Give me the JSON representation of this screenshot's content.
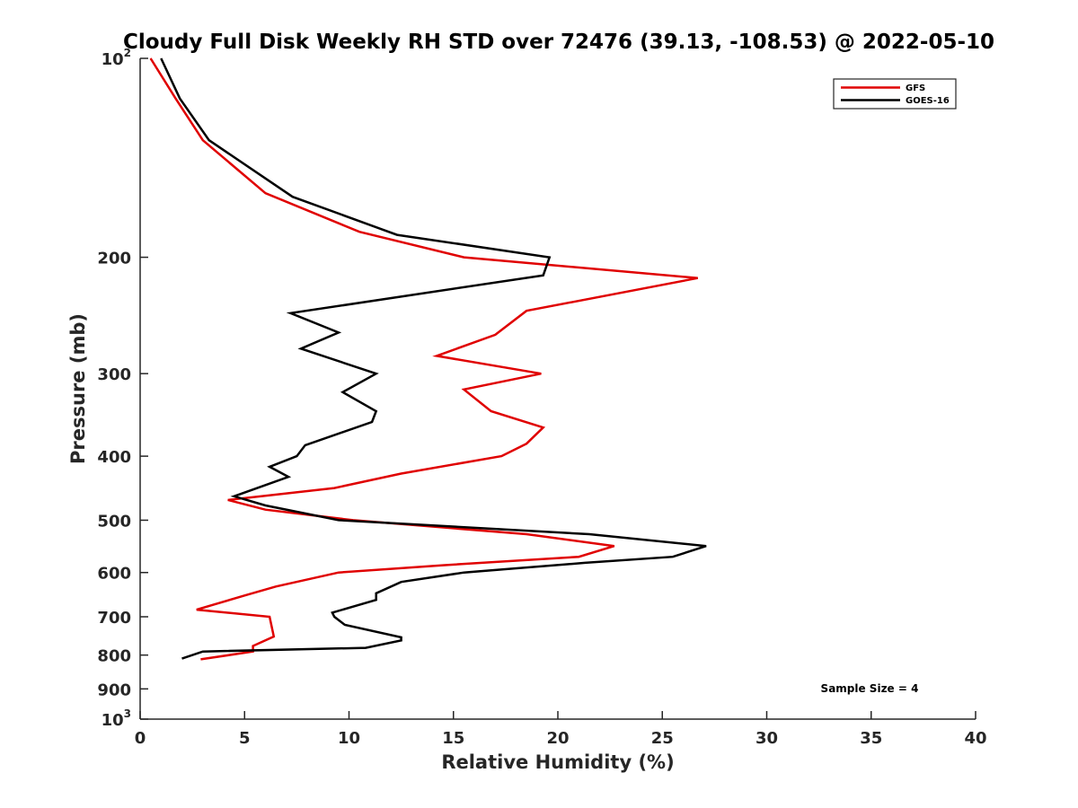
{
  "chart_data": {
    "type": "line",
    "title": "Cloudy Full Disk Weekly RH STD over 72476 (39.13, -108.53) @ 2022-05-10",
    "xlabel": "Relative Humidity (%)",
    "ylabel": "Pressure (mb)",
    "xlim": [
      0,
      40
    ],
    "ylim": [
      100,
      1000
    ],
    "y_scale": "log",
    "y_reversed": true,
    "x_ticks": [
      0,
      5,
      10,
      15,
      20,
      25,
      30,
      35,
      40
    ],
    "y_ticks": [
      {
        "value": 100,
        "base": "10",
        "exp": "2"
      },
      {
        "value": 200,
        "label": "200"
      },
      {
        "value": 300,
        "label": "300"
      },
      {
        "value": 400,
        "label": "400"
      },
      {
        "value": 500,
        "label": "500"
      },
      {
        "value": 600,
        "label": "600"
      },
      {
        "value": 700,
        "label": "700"
      },
      {
        "value": 800,
        "label": "800"
      },
      {
        "value": 900,
        "label": "900"
      },
      {
        "value": 1000,
        "base": "10",
        "exp": "3"
      }
    ],
    "legend_position": "top-right",
    "grid": false,
    "annotation": "Sample Size = 4",
    "series": [
      {
        "name": "GFS",
        "color": "#e00000",
        "points": [
          [
            0.5,
            100
          ],
          [
            1.7,
            115
          ],
          [
            3.0,
            133
          ],
          [
            6.0,
            160
          ],
          [
            10.5,
            183
          ],
          [
            15.5,
            200
          ],
          [
            26.7,
            215
          ],
          [
            18.5,
            241
          ],
          [
            17.0,
            262
          ],
          [
            14.2,
            282
          ],
          [
            19.2,
            300
          ],
          [
            15.5,
            317
          ],
          [
            16.8,
            342
          ],
          [
            19.3,
            362
          ],
          [
            18.5,
            383
          ],
          [
            17.3,
            400
          ],
          [
            12.5,
            425
          ],
          [
            9.3,
            447
          ],
          [
            4.2,
            466
          ],
          [
            6.0,
            482
          ],
          [
            10.2,
            500
          ],
          [
            18.5,
            525
          ],
          [
            22.7,
            547
          ],
          [
            21.0,
            568
          ],
          [
            14.5,
            585
          ],
          [
            9.5,
            600
          ],
          [
            6.5,
            630
          ],
          [
            5.0,
            650
          ],
          [
            2.7,
            683
          ],
          [
            6.2,
            700
          ],
          [
            6.4,
            750
          ],
          [
            5.4,
            775
          ],
          [
            5.4,
            790
          ],
          [
            2.9,
            812
          ]
        ]
      },
      {
        "name": "GOES-16",
        "color": "#000000",
        "points": [
          [
            1.0,
            100
          ],
          [
            1.9,
            115
          ],
          [
            3.3,
            133
          ],
          [
            7.3,
            162
          ],
          [
            12.3,
            185
          ],
          [
            19.6,
            200
          ],
          [
            19.3,
            213
          ],
          [
            7.2,
            243
          ],
          [
            9.5,
            260
          ],
          [
            7.7,
            275
          ],
          [
            11.3,
            300
          ],
          [
            9.7,
            320
          ],
          [
            11.3,
            342
          ],
          [
            11.1,
            355
          ],
          [
            7.9,
            385
          ],
          [
            7.5,
            400
          ],
          [
            6.2,
            415
          ],
          [
            7.1,
            430
          ],
          [
            4.5,
            460
          ],
          [
            6.0,
            475
          ],
          [
            9.5,
            500
          ],
          [
            21.5,
            525
          ],
          [
            27.1,
            547
          ],
          [
            25.5,
            568
          ],
          [
            21.3,
            580
          ],
          [
            15.5,
            600
          ],
          [
            12.5,
            620
          ],
          [
            11.3,
            645
          ],
          [
            11.3,
            660
          ],
          [
            9.2,
            690
          ],
          [
            9.3,
            700
          ],
          [
            9.8,
            720
          ],
          [
            12.5,
            752
          ],
          [
            12.5,
            760
          ],
          [
            10.8,
            780
          ],
          [
            3.0,
            790
          ],
          [
            2.0,
            810
          ]
        ]
      }
    ]
  }
}
